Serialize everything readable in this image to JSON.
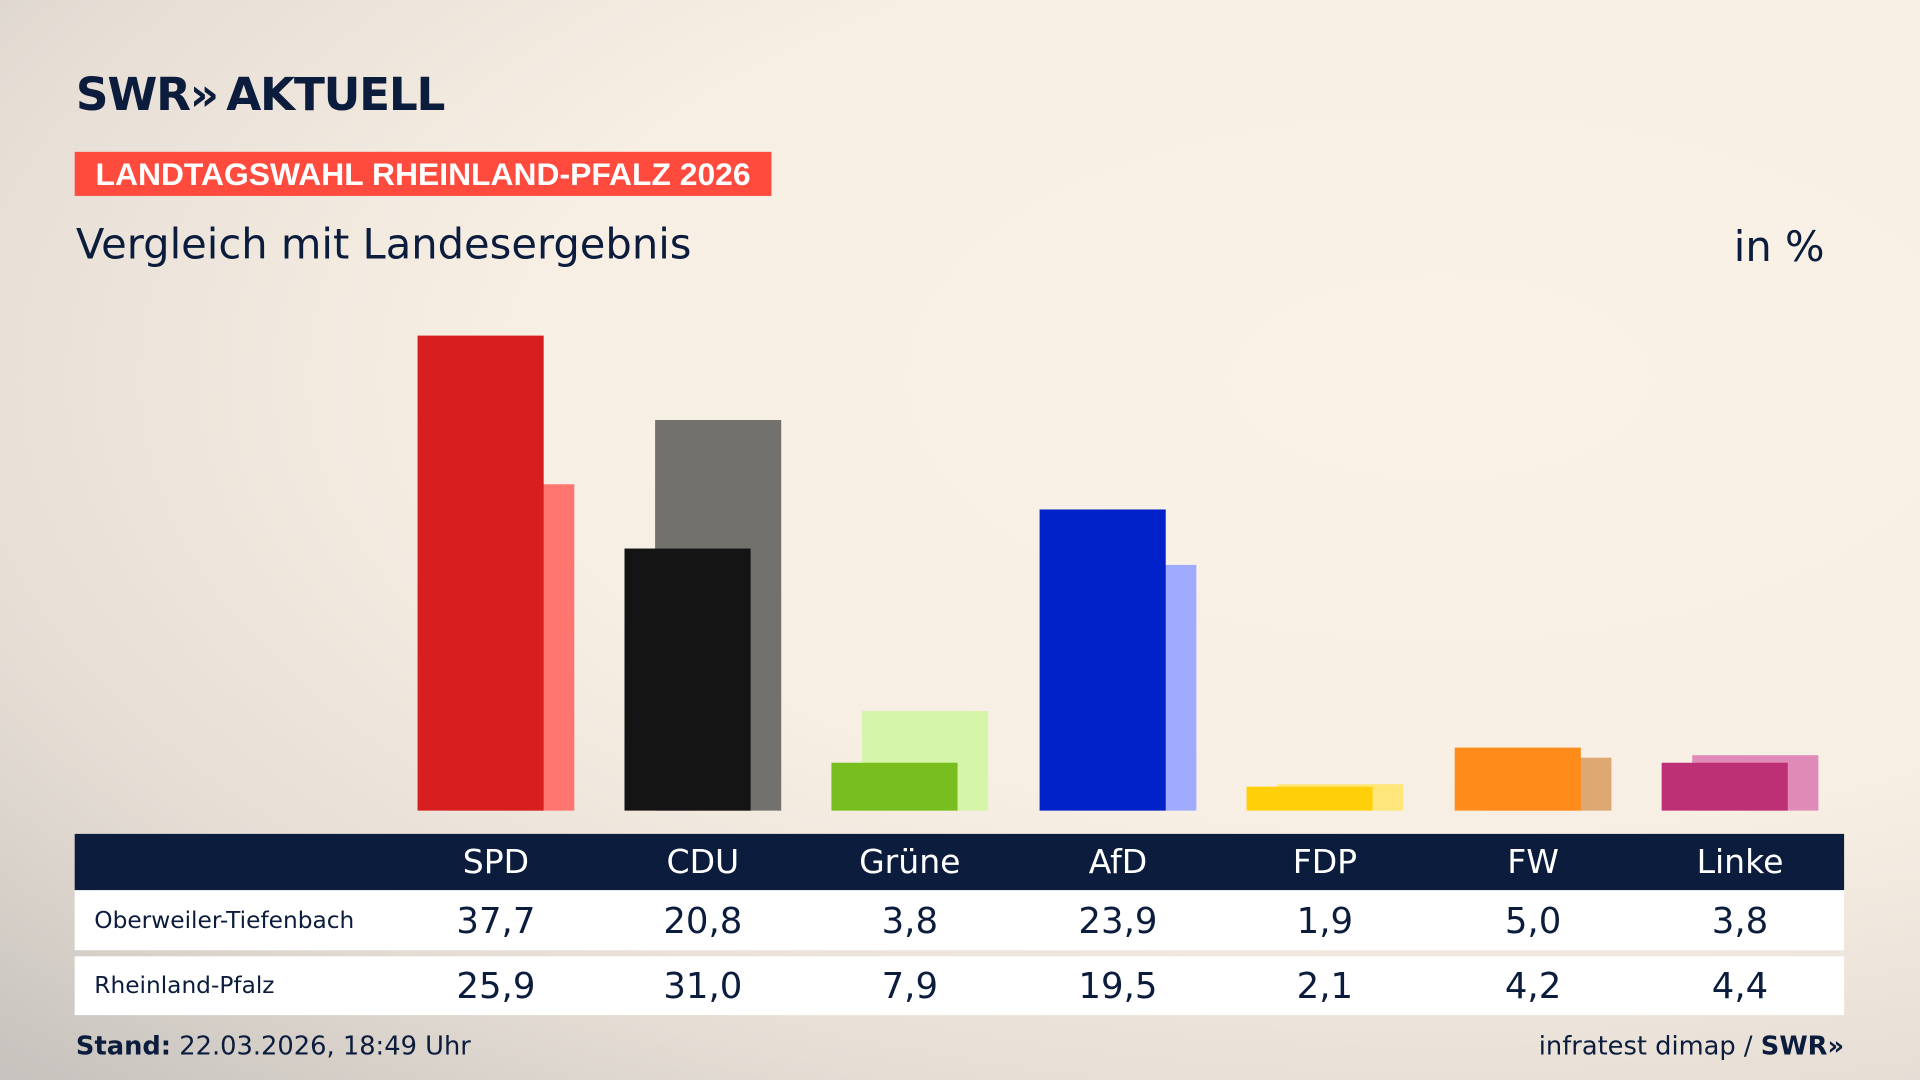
{
  "brand": {
    "logo": "SWR» AKTUELL",
    "source": "infratest dimap /",
    "source_logo": "SWR»"
  },
  "header": {
    "badge": "LANDTAGSWAHL RHEINLAND-PFALZ 2026",
    "subtitle": "Vergleich mit Landesergebnis",
    "unit": "in %"
  },
  "footer": {
    "stand_label": "Stand:",
    "stand_value": " 22.03.2026, 18:49 Uhr"
  },
  "colors": {
    "navy": "#0b1c3d",
    "badge": "#ff4b3e"
  },
  "chart_data": {
    "type": "bar",
    "categories": [
      "SPD",
      "CDU",
      "Grüne",
      "AfD",
      "FDP",
      "FW",
      "Linke"
    ],
    "series": [
      {
        "name": "Oberweiler-Tiefenbach",
        "values": [
          37.7,
          20.8,
          3.8,
          23.9,
          1.9,
          5.0,
          3.8
        ],
        "labels": [
          "37,7",
          "20,8",
          "3,8",
          "23,9",
          "1,9",
          "5,0",
          "3,8"
        ],
        "colors": [
          "#d81f1f",
          "#141414",
          "#78be1e",
          "#0022c8",
          "#ffd00a",
          "#ff8c1a",
          "#be3075"
        ]
      },
      {
        "name": "Rheinland-Pfalz",
        "values": [
          25.9,
          31.0,
          7.9,
          19.5,
          2.1,
          4.2,
          4.4
        ],
        "labels": [
          "25,9",
          "31,0",
          "7,9",
          "19,5",
          "2,1",
          "4,2",
          "4,4"
        ],
        "colors": [
          "#ff7570",
          "#73716e",
          "#d5f5a8",
          "#9fabff",
          "#ffe67a",
          "#dda872",
          "#e08ab8"
        ]
      }
    ],
    "ylim": [
      0,
      40
    ],
    "grid": false,
    "unit": "in %"
  }
}
